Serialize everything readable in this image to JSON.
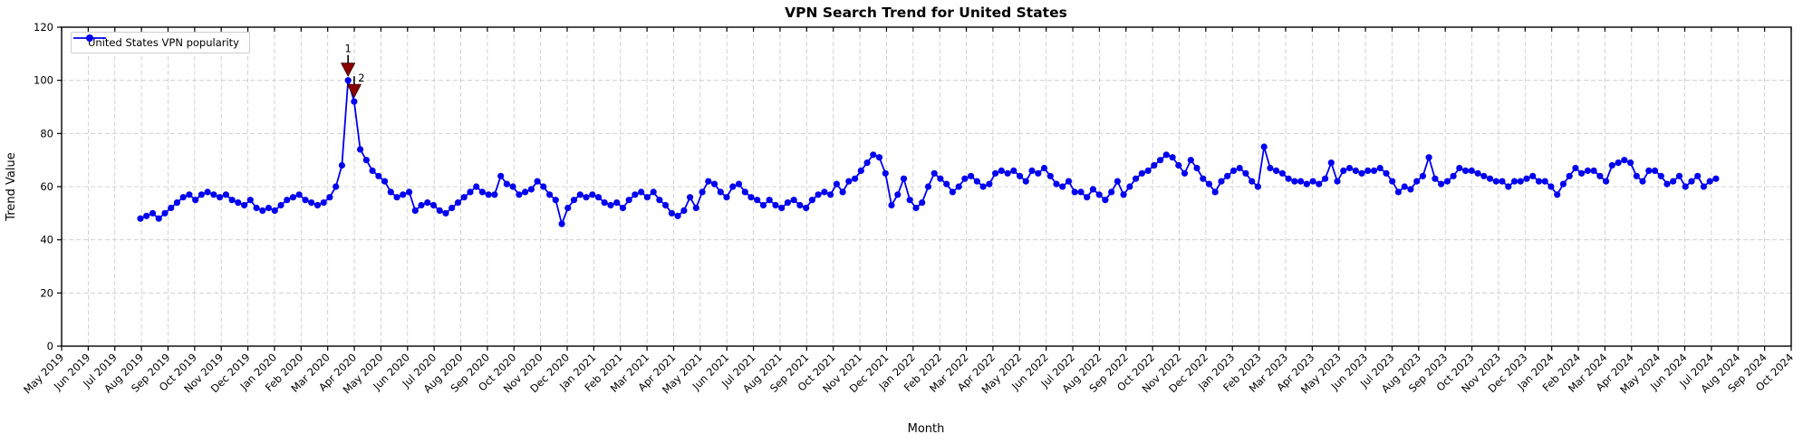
{
  "title": "VPN Search Trend for United States",
  "legend": {
    "label": "United States VPN popularity"
  },
  "colors": {
    "line": "#0000EE",
    "marker": "#0000EE",
    "annotation": "#8B0000",
    "grid": "#c8c8c8",
    "axis": "#000000"
  },
  "chart_data": {
    "type": "line",
    "title": "VPN Search Trend for United States",
    "xlabel": "Month",
    "ylabel": "Trend Value",
    "ylim": [
      0,
      120
    ],
    "y_ticks": [
      0,
      20,
      40,
      60,
      80,
      100,
      120
    ],
    "grid": true,
    "legend_position": "upper-left",
    "x_tick_labels": [
      "May 2019",
      "Jun 2019",
      "Jul 2019",
      "Aug 2019",
      "Sep 2019",
      "Oct 2019",
      "Nov 2019",
      "Dec 2019",
      "Jan 2020",
      "Feb 2020",
      "Mar 2020",
      "Apr 2020",
      "May 2020",
      "Jun 2020",
      "Jul 2020",
      "Aug 2020",
      "Sep 2020",
      "Oct 2020",
      "Nov 2020",
      "Dec 2020",
      "Jan 2021",
      "Feb 2021",
      "Mar 2021",
      "Apr 2021",
      "May 2021",
      "Jun 2021",
      "Jul 2021",
      "Aug 2021",
      "Sep 2021",
      "Oct 2021",
      "Nov 2021",
      "Dec 2021",
      "Jan 2022",
      "Feb 2022",
      "Mar 2022",
      "Apr 2022",
      "May 2022",
      "Jun 2022",
      "Jul 2022",
      "Aug 2022",
      "Sep 2022",
      "Oct 2022",
      "Nov 2022",
      "Dec 2022",
      "Jan 2023",
      "Feb 2023",
      "Mar 2023",
      "Apr 2023",
      "May 2023",
      "Jun 2023",
      "Jul 2023",
      "Aug 2023",
      "Sep 2023",
      "Oct 2023",
      "Nov 2023",
      "Dec 2023",
      "Jan 2024",
      "Feb 2024",
      "Mar 2024",
      "Apr 2024",
      "May 2024",
      "Jun 2024",
      "Jul 2024",
      "Aug 2024",
      "Sep 2024",
      "Oct 2024"
    ],
    "series": [
      {
        "name": "United States VPN popularity",
        "color": "#0000EE",
        "marker": "circle",
        "cadence": "weekly",
        "first_point_month": "Aug 2019",
        "last_point_month": "Jul 2024",
        "values": [
          48,
          49,
          50,
          48,
          50,
          52,
          54,
          56,
          57,
          55,
          57,
          58,
          57,
          56,
          57,
          55,
          54,
          53,
          55,
          52,
          51,
          52,
          51,
          53,
          55,
          56,
          57,
          55,
          54,
          53,
          54,
          56,
          60,
          68,
          100,
          92,
          74,
          70,
          66,
          64,
          62,
          58,
          56,
          57,
          58,
          51,
          53,
          54,
          53,
          51,
          50,
          52,
          54,
          56,
          58,
          60,
          58,
          57,
          57,
          64,
          61,
          60,
          57,
          58,
          59,
          62,
          60,
          57,
          55,
          46,
          52,
          55,
          57,
          56,
          57,
          56,
          54,
          53,
          54,
          52,
          55,
          57,
          58,
          56,
          58,
          55,
          53,
          50,
          49,
          51,
          56,
          52,
          58,
          62,
          61,
          58,
          56,
          60,
          61,
          58,
          56,
          55,
          53,
          55,
          53,
          52,
          54,
          55,
          53,
          52,
          55,
          57,
          58,
          57,
          61,
          58,
          62,
          63,
          66,
          69,
          72,
          71,
          65,
          53,
          57,
          63,
          55,
          52,
          54,
          60,
          65,
          63,
          61,
          58,
          60,
          63,
          64,
          62,
          60,
          61,
          65,
          66,
          65,
          66,
          64,
          62,
          66,
          65,
          67,
          64,
          61,
          60,
          62,
          58,
          58,
          56,
          59,
          57,
          55,
          58,
          62,
          57,
          60,
          63,
          65,
          66,
          68,
          70,
          72,
          71,
          68,
          65,
          70,
          67,
          63,
          61,
          58,
          62,
          64,
          66,
          67,
          65,
          62,
          60,
          75,
          67,
          66,
          65,
          63,
          62,
          62,
          61,
          62,
          61,
          63,
          69,
          62,
          66,
          67,
          66,
          65,
          66,
          66,
          67,
          65,
          62,
          58,
          60,
          59,
          62,
          64,
          71,
          63,
          61,
          62,
          64,
          67,
          66,
          66,
          65,
          64,
          63,
          62,
          62,
          60,
          62,
          62,
          63,
          64,
          62,
          62,
          60,
          57,
          61,
          64,
          67,
          65,
          66,
          66,
          64,
          62,
          68,
          69,
          70,
          69,
          64,
          62,
          66,
          66,
          64,
          61,
          62,
          64,
          60,
          62,
          64,
          60,
          62,
          63
        ]
      }
    ],
    "annotations": [
      {
        "label": "1",
        "point_index": 34,
        "value": 100,
        "marker": "triangle-down",
        "color": "#8B0000"
      },
      {
        "label": "2",
        "point_index": 35,
        "value": 92,
        "marker": "triangle-down",
        "color": "#8B0000"
      }
    ]
  }
}
